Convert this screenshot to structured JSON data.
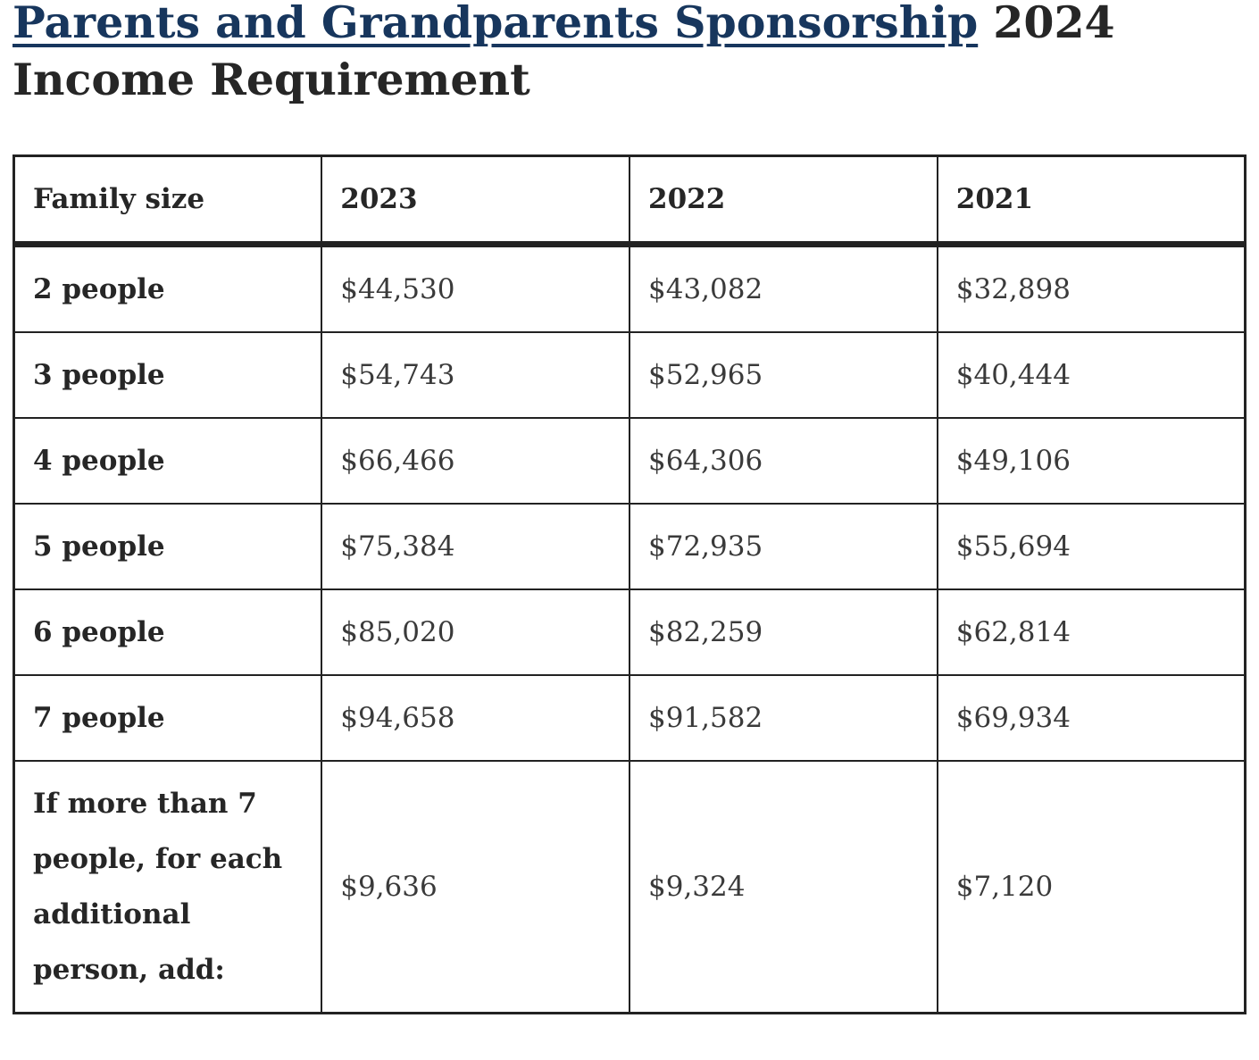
{
  "colors": {
    "link": "#17365d",
    "heading": "#262626",
    "label": "#262626",
    "value": "#3a3a3a",
    "border": "#222222",
    "bg": "#ffffff"
  },
  "title": {
    "link_text": "Parents and Grandparents Sponsorship",
    "suffix": " 2024 Income Requirement"
  },
  "table": {
    "columns": [
      "Family size",
      "2023",
      "2022",
      "2021"
    ],
    "rows": [
      {
        "label": "2 people",
        "values": [
          "$44,530",
          "$43,082",
          "$32,898"
        ]
      },
      {
        "label": "3 people",
        "values": [
          "$54,743",
          "$52,965",
          "$40,444"
        ]
      },
      {
        "label": "4 people",
        "values": [
          "$66,466",
          "$64,306",
          "$49,106"
        ]
      },
      {
        "label": "5 people",
        "values": [
          "$75,384",
          "$72,935",
          "$55,694"
        ]
      },
      {
        "label": "6 people",
        "values": [
          "$85,020",
          "$82,259",
          "$62,814"
        ]
      },
      {
        "label": "7 people",
        "values": [
          "$94,658",
          "$91,582",
          "$69,934"
        ]
      },
      {
        "label": "If more than 7 people, for each additional person, add:",
        "values": [
          "$9,636",
          "$9,324",
          "$7,120"
        ]
      }
    ]
  }
}
